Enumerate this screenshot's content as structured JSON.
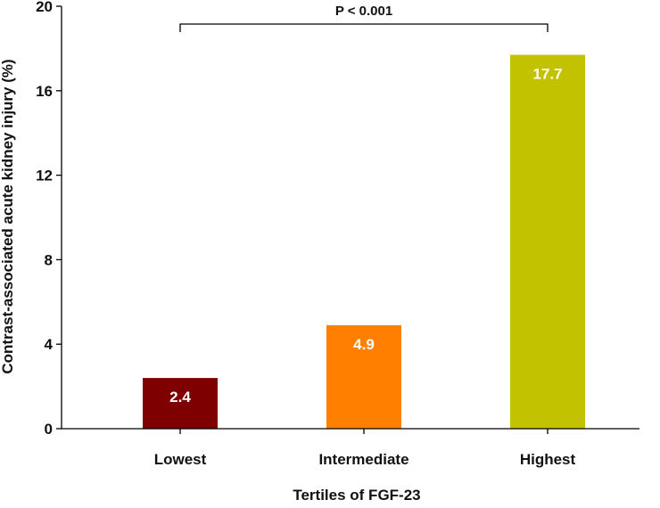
{
  "chart_data": {
    "type": "bar",
    "categories": [
      "Lowest",
      "Intermediate",
      "Highest"
    ],
    "values": [
      2.4,
      4.9,
      17.7
    ],
    "value_labels": [
      "2.4",
      "4.9",
      "17.7"
    ],
    "bar_colors": [
      "#7f0000",
      "#ff8000",
      "#c2c200"
    ],
    "title": "",
    "xlabel": "Tertiles of FGF-23",
    "ylabel": "Contrast-associated acute kidney injury (%)",
    "ylim": [
      0,
      20
    ],
    "yticks": [
      0,
      4,
      8,
      12,
      16,
      20
    ],
    "grid": false,
    "legend": "none",
    "annotation": {
      "text": "P < 0.001",
      "from_category": "Lowest",
      "to_category": "Highest"
    }
  }
}
